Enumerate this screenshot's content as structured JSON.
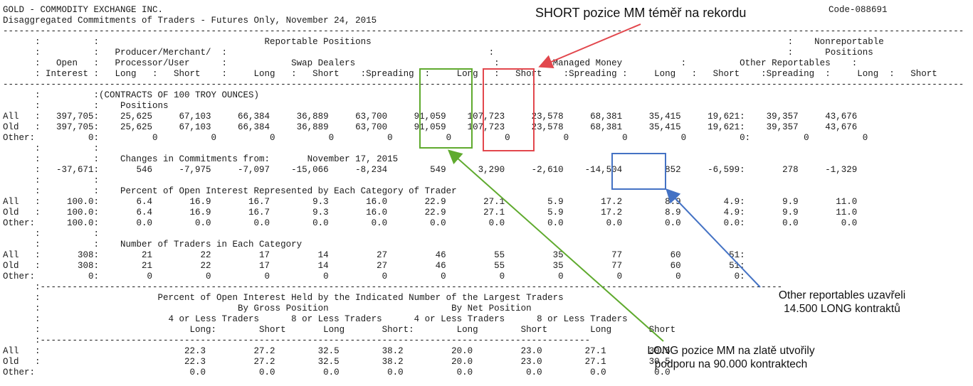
{
  "header": {
    "line1": "GOLD - COMMODITY EXCHANGE INC.",
    "line2": "Disaggregated Commitments of Traders - Futures Only, November 24, 2015",
    "code": "Code-088691"
  },
  "report_lines": [
    "------------------------------------------------------------------------------------------------------------------------------------------------------------------------------------",
    "      :          :                               Reportable Positions                                                                              :    Nonreportable",
    "      :          :   Producer/Merchant/  :                                                 :                                                       :      Positions",
    "      :   Open   :   Processor/User      :            Swap Dealers                          :          Managed Money           :          Other Reportables    :",
    "      : Interest :   Long   :   Short    :     Long   :   Short    :Spreading  :     Long   :   Short    :Spreading :     Long   :   Short    :Spreading  :     Long  :   Short",
    "------------------------------------------------------------------------------------------------------------------------------------------------------------------------------------",
    "      :          :(CONTRACTS OF 100 TROY OUNCES)",
    "      :          :    Positions",
    "All   :   397,705:    25,625     67,103     66,384     36,889     63,700     91,059    107,723     23,578     68,381     35,415     19,621:    39,357     43,676",
    "Old   :   397,705:    25,625     67,103     66,384     36,889     63,700     91,059    107,723     23,578     68,381     35,415     19,621:    39,357     43,676",
    "Other:          0:          0          0          0          0          0          0          0          0          0          0          0:          0          0",
    "      :          :",
    "      :          :    Changes in Commitments from:       November 17, 2015",
    "      :   -37,671:       546     -7,975     -7,097    -15,066     -8,234        549      3,290     -2,610    -14,504        852     -6,599:       278     -1,329",
    "      :          :",
    "      :          :    Percent of Open Interest Represented by Each Category of Trader",
    "All   :     100.0:       6.4       16.9       16.7        9.3       16.0       22.9       27.1        5.9       17.2        8.9        4.9:       9.9       11.0",
    "Old   :     100.0:       6.4       16.9       16.7        9.3       16.0       22.9       27.1        5.9       17.2        8.9        4.9:       9.9       11.0",
    "Other:      100.0:       0.0        0.0        0.0        0.0        0.0        0.0        0.0        0.0        0.0        0.0        0.0:       0.0        0.0",
    "      :          :",
    "      :          :    Number of Traders in Each Category",
    "All   :       308:        21         22         17         14         27         46         55         35         77         60         51:",
    "Old   :       308:        21         22         17         14         27         46         55         35         77         60         51:",
    "Other:          0:         0          0          0          0          0          0          0          0          0          0          0:",
    "      :-------------------------------------------------------------------------------------------------------------------------------------------",
    "      :                      Percent of Open Interest Held by the Indicated Number of the Largest Traders",
    "      :                                     By Gross Position                       By Net Position",
    "      :                        4 or Less Traders      8 or Less Traders      4 or Less Traders      8 or Less Traders",
    "      :                            Long:        Short       Long       Short:        Long        Short        Long       Short",
    "      :-------------------------------------------------------------------------------------------------------",
    "All   :                           22.3         27.2        32.5        38.2         20.0         23.0        27.1        30.5",
    "Old   :                           22.3         27.2        32.5        38.2         20.0         23.0        27.1        30.5",
    "Other:                             0.0          0.0         0.0         0.0          0.0          0.0         0.0         0.0"
  ],
  "annotations": {
    "short_title": "SHORT pozice MM téměř na rekordu",
    "other_line1": "Other reportables uzavřeli",
    "other_line2": "14.500 LONG kontraktů",
    "long_line1": "LONG pozice MM na zlatě utvořily",
    "long_line2": "podporu na 90.000 kontraktech"
  },
  "colors": {
    "red": "#e2474d",
    "green": "#5faa2e",
    "blue": "#4472c4"
  }
}
